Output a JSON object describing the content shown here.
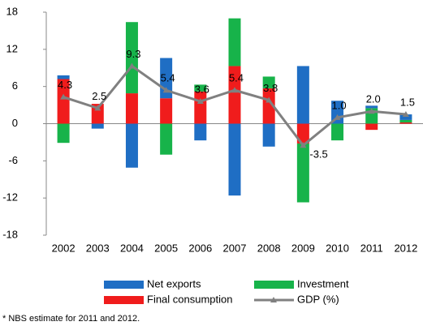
{
  "chart_data": {
    "type": "bar",
    "categories": [
      "2002",
      "2003",
      "2004",
      "2005",
      "2006",
      "2007",
      "2008",
      "2009",
      "2010",
      "2011",
      "2012"
    ],
    "series": [
      {
        "name": "Net exports",
        "color": "#1f6ec4",
        "values": [
          0.6,
          -0.8,
          -7.1,
          6.5,
          -2.7,
          -11.6,
          -3.7,
          9.3,
          3.7,
          0.4,
          0.9
        ]
      },
      {
        "name": "Investment",
        "color": "#17b34a",
        "values": [
          -3.1,
          0,
          11.5,
          -5.0,
          1.1,
          7.7,
          1.9,
          -9.5,
          -2.7,
          2.5,
          0.4
        ]
      },
      {
        "name": "Final consumption",
        "color": "#f01c1c",
        "values": [
          7.2,
          3.2,
          4.9,
          4.1,
          5.2,
          9.3,
          5.7,
          -3.2,
          0,
          -1.0,
          0.2
        ]
      },
      {
        "name": "GDP (%)",
        "color": "#808080",
        "type": "line",
        "values": [
          4.3,
          2.5,
          9.3,
          5.4,
          3.6,
          5.4,
          3.8,
          -3.5,
          1.0,
          2.0,
          1.5
        ],
        "value_labels": [
          "4.3",
          "2.5",
          "9.3",
          "5.4",
          "3.6",
          "5.4",
          "3.8",
          "-3.5",
          "1.0",
          "2.0",
          "1.5"
        ]
      }
    ],
    "ylim": [
      -18,
      18
    ],
    "yticks": [
      -18,
      -12,
      -6,
      0,
      6,
      12,
      18
    ],
    "grid": false,
    "legend": "bottom",
    "note": "* NBS estimate for 2011 and 2012."
  }
}
